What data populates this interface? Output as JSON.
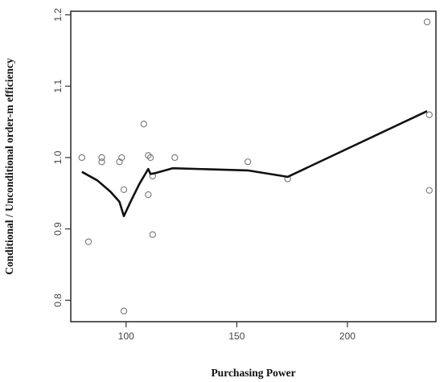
{
  "chart_data": {
    "type": "scatter",
    "xlabel": "Purchasing Power",
    "ylabel": "Conditional / Unconditional order-m efficiency",
    "xlim": [
      75,
      240
    ],
    "ylim": [
      0.77,
      1.205
    ],
    "x_ticks": [
      100,
      150,
      200
    ],
    "y_ticks": [
      0.8,
      0.9,
      1.0,
      1.1,
      1.2
    ],
    "x_tick_labels": [
      "100",
      "150",
      "200"
    ],
    "y_tick_labels": [
      "0.8",
      "0.9",
      "1.0",
      "1.1",
      "1.2"
    ],
    "grid": false,
    "legend": "none",
    "series": [
      {
        "kind": "points",
        "marker": "open-circle",
        "x": [
          80,
          83,
          89,
          89,
          97,
          98,
          99,
          99,
          108,
          110,
          110,
          111,
          112,
          112,
          122,
          155,
          173,
          236,
          237,
          237
        ],
        "y": [
          1.0,
          0.882,
          1.0,
          0.994,
          0.994,
          1.0,
          0.955,
          0.785,
          1.047,
          1.003,
          0.948,
          1.0,
          0.974,
          0.892,
          1.0,
          0.994,
          0.97,
          1.19,
          1.06,
          0.954
        ]
      },
      {
        "kind": "line",
        "x": [
          80,
          87,
          93,
          97,
          99,
          102,
          106,
          110,
          111,
          113,
          121,
          155,
          173,
          236
        ],
        "y": [
          0.98,
          0.968,
          0.952,
          0.938,
          0.918,
          0.938,
          0.963,
          0.984,
          0.977,
          0.978,
          0.985,
          0.982,
          0.973,
          1.065
        ]
      }
    ]
  }
}
